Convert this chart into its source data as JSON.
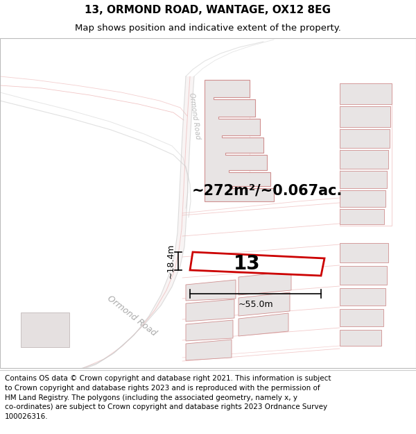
{
  "title": "13, ORMOND ROAD, WANTAGE, OX12 8EG",
  "subtitle": "Map shows position and indicative extent of the property.",
  "footer": "Contains OS data © Crown copyright and database right 2021. This information is subject\nto Crown copyright and database rights 2023 and is reproduced with the permission of\nHM Land Registry. The polygons (including the associated geometry, namely x, y\nco-ordinates) are subject to Crown copyright and database rights 2023 Ordnance Survey\n100026316.",
  "area_text": "~272m²/~0.067ac.",
  "width_label": "~55.0m",
  "height_label": "~18.4m",
  "property_number": "13",
  "map_bg": "#f9f6f6",
  "road_line_color": "#e8a0a0",
  "road_edge_color": "#c8c8c8",
  "building_fill": "#e8e4e4",
  "building_edge": "#d09090",
  "highlight_color": "#cc0000",
  "title_fontsize": 11,
  "subtitle_fontsize": 9.5,
  "footer_fontsize": 7.5,
  "area_fontsize": 15,
  "dim_fontsize": 9,
  "prop_label_fontsize": 20,
  "road_label_fontsize": 9
}
